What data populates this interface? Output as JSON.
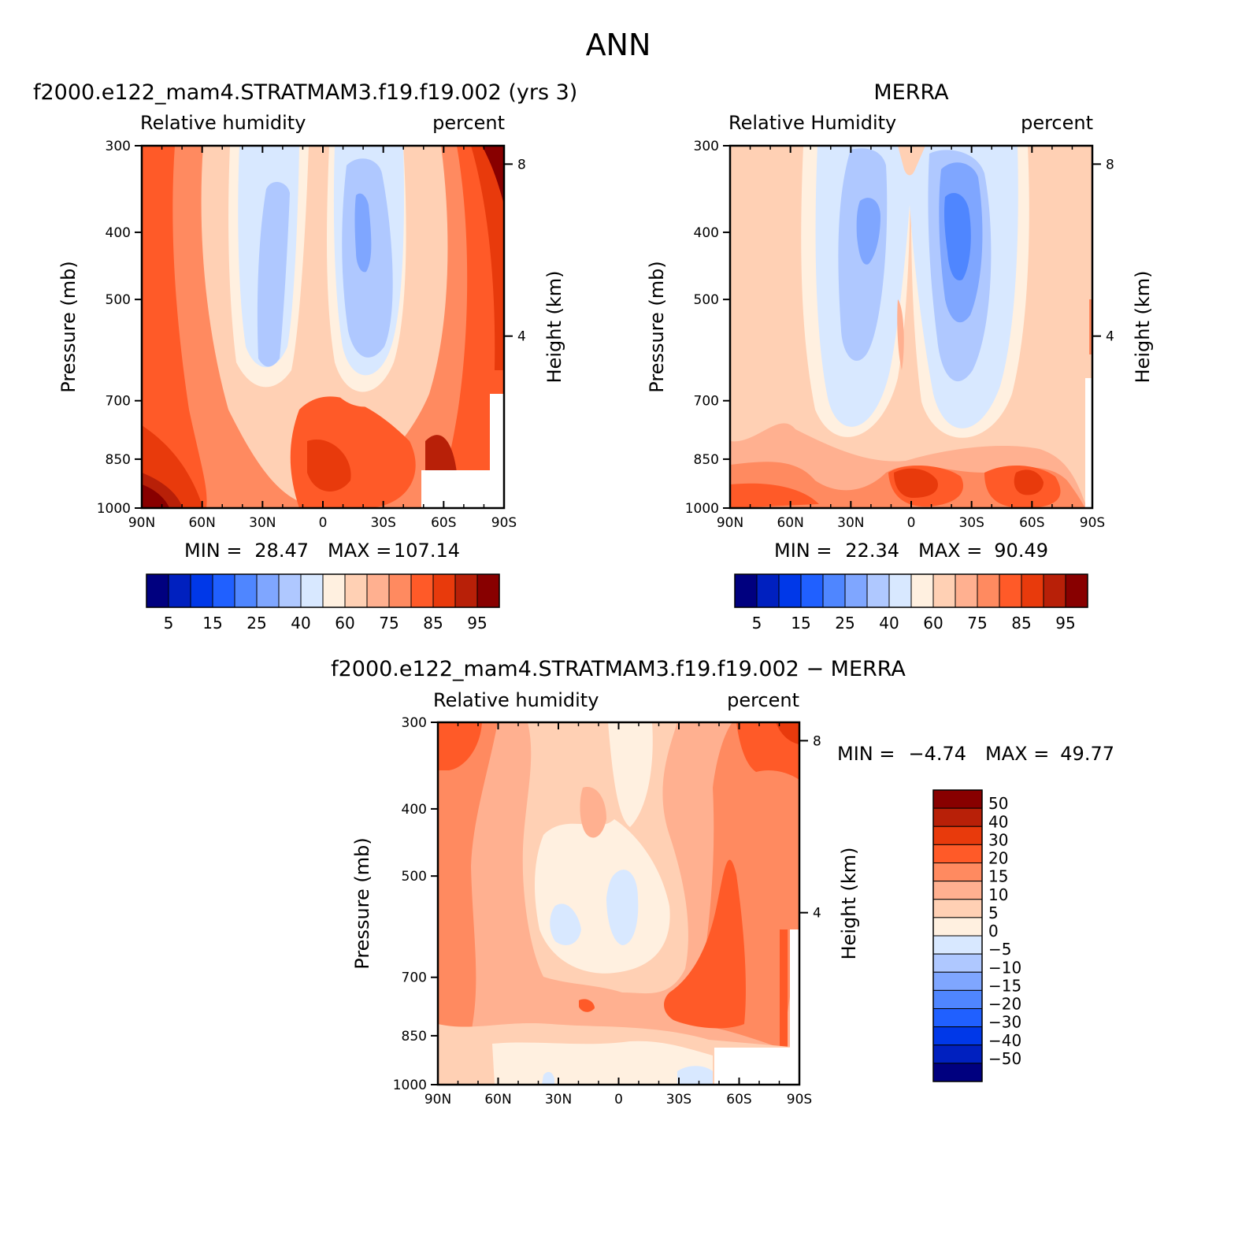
{
  "page_title": "ANN",
  "chart_data": [
    {
      "type": "heatmap",
      "title": "f2000.e122_mam4.STRATMAM3.f19.f19.002 (yrs 3)",
      "left_label": "Relative humidity",
      "right_label": "percent",
      "ylabel": "Pressure (mb)",
      "y2label": "Height (km)",
      "xticks": [
        "90N",
        "60N",
        "30N",
        "0",
        "30S",
        "60S",
        "90S"
      ],
      "yticks": [
        "300",
        "400",
        "500",
        "700",
        "850",
        "1000"
      ],
      "y2ticks": [
        "8",
        "4"
      ],
      "stats": {
        "min_label": "MIN =",
        "min": "28.47",
        "max_label": "MAX =",
        "max": "107.14"
      },
      "colorbar": {
        "labels": [
          "5",
          "15",
          "25",
          "40",
          "60",
          "75",
          "85",
          "95"
        ]
      }
    },
    {
      "type": "heatmap",
      "title": "MERRA",
      "left_label": "Relative Humidity",
      "right_label": "percent",
      "ylabel": "Pressure (mb)",
      "y2label": "Height (km)",
      "xticks": [
        "90N",
        "60N",
        "30N",
        "0",
        "30S",
        "60S",
        "90S"
      ],
      "yticks": [
        "300",
        "400",
        "500",
        "700",
        "850",
        "1000"
      ],
      "y2ticks": [
        "8",
        "4"
      ],
      "stats": {
        "min_label": "MIN =",
        "min": "22.34",
        "max_label": "MAX =",
        "max": "90.49"
      },
      "colorbar": {
        "labels": [
          "5",
          "15",
          "25",
          "40",
          "60",
          "75",
          "85",
          "95"
        ]
      }
    },
    {
      "type": "heatmap",
      "title": "f2000.e122_mam4.STRATMAM3.f19.f19.002 − MERRA",
      "left_label": "Relative humidity",
      "right_label": "percent",
      "ylabel": "Pressure (mb)",
      "y2label": "Height (km)",
      "xticks": [
        "90N",
        "60N",
        "30N",
        "0",
        "30S",
        "60S",
        "90S"
      ],
      "yticks": [
        "300",
        "400",
        "500",
        "700",
        "850",
        "1000"
      ],
      "y2ticks": [
        "8",
        "4"
      ],
      "stats": {
        "min_label": "MIN =",
        "min": "−4.74",
        "max_label": "MAX =",
        "max": "49.77"
      },
      "colorbar": {
        "labels": [
          "50",
          "40",
          "30",
          "20",
          "15",
          "10",
          "5",
          "0",
          "−5",
          "−10",
          "−15",
          "−20",
          "−30",
          "−40",
          "−50"
        ]
      }
    }
  ],
  "colors": {
    "abs_scale": [
      "#00007f",
      "#0020bf",
      "#0038e8",
      "#2060ff",
      "#4f86ff",
      "#7fa6ff",
      "#afc8ff",
      "#d8e8ff",
      "#fff0e0",
      "#ffd0b4",
      "#ffb090",
      "#ff8a60",
      "#ff5a28",
      "#e83a0c",
      "#b82008",
      "#880000"
    ],
    "diff_scale": [
      "#880000",
      "#b82008",
      "#e83a0c",
      "#ff5a28",
      "#ff8a60",
      "#ffb090",
      "#ffd0b4",
      "#fff0e0",
      "#d8e8ff",
      "#afc8ff",
      "#7fa6ff",
      "#4f86ff",
      "#2060ff",
      "#0038e8",
      "#0020bf",
      "#00007f"
    ]
  }
}
